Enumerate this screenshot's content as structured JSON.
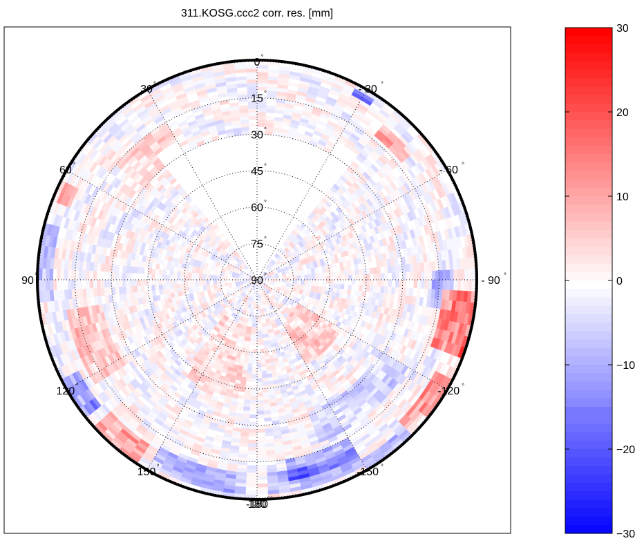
{
  "chart_data": {
    "type": "heatmap",
    "projection": "polar-skyplot",
    "title": "311.KOSG.ccc2 corr. res. [mm]",
    "radial_axis": {
      "quantity": "elevation",
      "unit_mark": "°",
      "range_deg": [
        0,
        90
      ],
      "tick_labels": [
        "0",
        "15",
        "30",
        "45",
        "60",
        "75",
        "90"
      ],
      "gridlines": "dotted"
    },
    "angular_axis": {
      "quantity": "azimuth",
      "orientation": "0 at top, positive counter-clockwise (left), negative to the right",
      "tick_labels": [
        {
          "deg": 0,
          "label": "0"
        },
        {
          "deg": 30,
          "label": "30"
        },
        {
          "deg": 60,
          "label": "60"
        },
        {
          "deg": 90,
          "label": "90"
        },
        {
          "deg": 120,
          "label": "120"
        },
        {
          "deg": 150,
          "label": "150"
        },
        {
          "deg": 180,
          "label": "180"
        },
        {
          "deg": -30,
          "label": "- 30"
        },
        {
          "deg": -60,
          "label": "- 60"
        },
        {
          "deg": -90,
          "label": "- 90"
        },
        {
          "deg": -120,
          "label": "-120"
        },
        {
          "deg": -150,
          "label": "-150"
        },
        {
          "deg": -180,
          "label": "-180"
        }
      ],
      "spoke_step_deg": 30
    },
    "coverage": {
      "north_gap_azimuth_deg": [
        -38,
        38
      ],
      "north_gap_min_elevation_deg": 30,
      "notes": "no observations in the northern sector above ~25-30° elevation"
    },
    "cells_note": "approximate residual pattern, values in mm, estimated from colors",
    "features": [
      {
        "az_range": [
          -112,
          -94
        ],
        "el_range": [
          0,
          14
        ],
        "value": 18
      },
      {
        "az_range": [
          -134,
          -116
        ],
        "el_range": [
          0,
          7
        ],
        "value": 14
      },
      {
        "az_range": [
          -100,
          -88
        ],
        "el_range": [
          9,
          18
        ],
        "value": -8
      },
      {
        "az_range": [
          118,
          130
        ],
        "el_range": [
          0,
          7
        ],
        "value": -14
      },
      {
        "az_range": [
          132,
          148
        ],
        "el_range": [
          0,
          9
        ],
        "value": 12
      },
      {
        "az_range": [
          62,
          70
        ],
        "el_range": [
          1,
          8
        ],
        "value": 10
      },
      {
        "az_range": [
          76,
          96
        ],
        "el_range": [
          0,
          6
        ],
        "value": -8
      },
      {
        "az_range": [
          100,
          124
        ],
        "el_range": [
          10,
          26
        ],
        "value": 7
      },
      {
        "az_range": [
          150,
          178
        ],
        "el_range": [
          2,
          10
        ],
        "value": -9
      },
      {
        "az_range": [
          -178,
          -150
        ],
        "el_range": [
          2,
          10
        ],
        "value": -8
      },
      {
        "az_range": [
          -170,
          -150
        ],
        "el_range": [
          6,
          15
        ],
        "value": -11
      },
      {
        "az_range": [
          -160,
          -120
        ],
        "el_range": [
          18,
          32
        ],
        "value": -5
      },
      {
        "az_range": [
          -50,
          -38
        ],
        "el_range": [
          8,
          14
        ],
        "value": 10
      },
      {
        "az_range": [
          -34,
          -28
        ],
        "el_range": [
          2,
          5
        ],
        "value": -20
      },
      {
        "az_range": [
          -150,
          -130
        ],
        "el_range": [
          0,
          4
        ],
        "value": -9
      },
      {
        "az_range": [
          -150,
          -120
        ],
        "el_range": [
          50,
          70
        ],
        "value": 6
      },
      {
        "az_range": [
          140,
          175
        ],
        "el_range": [
          40,
          70
        ],
        "value": 4
      },
      {
        "az_range": [
          30,
          50
        ],
        "el_range": [
          15,
          30
        ],
        "value": 5
      }
    ]
  },
  "colorbar": {
    "min": -30,
    "max": 30,
    "tick_labels": [
      "30",
      "20",
      "10",
      "0",
      "−10",
      "−20",
      "−30"
    ],
    "tick_values": [
      30,
      20,
      10,
      0,
      -10,
      -20,
      -30
    ],
    "colormap": "blue-white-red",
    "color_min": "#0000ff",
    "color_mid": "#ffffff",
    "color_max": "#ff0000",
    "levels": 60
  },
  "colors": {
    "grid": "#000000",
    "frame": "#000000",
    "background": "#ffffff"
  }
}
